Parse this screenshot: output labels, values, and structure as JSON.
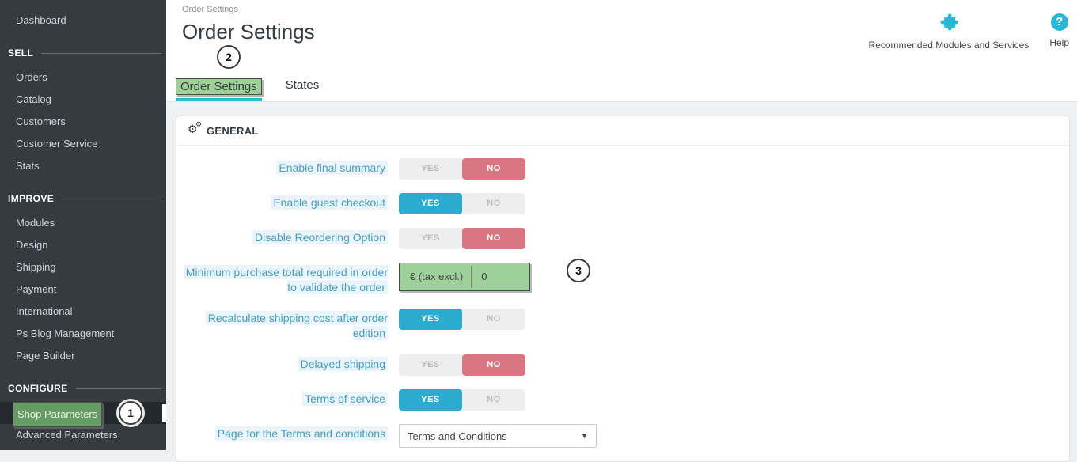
{
  "colors": {
    "accent": "#25b9d7",
    "sidebar-bg": "#363a41",
    "sidebar-selected-bg": "#24292e",
    "toggle-yes-active": "#2bacce",
    "toggle-no-active": "#d8777f",
    "annotation-green": "rgba(125,193,119,0.75)",
    "label-blue": "#459fc4",
    "label-bg": "#eaf4fa"
  },
  "sidebar": {
    "dashboard": "Dashboard",
    "selected_item": "Shop Parameters",
    "sections": [
      {
        "header": "SELL",
        "items": [
          "Orders",
          "Catalog",
          "Customers",
          "Customer Service",
          "Stats"
        ]
      },
      {
        "header": "IMPROVE",
        "items": [
          "Modules",
          "Design",
          "Shipping",
          "Payment",
          "International",
          "Ps Blog Management",
          "Page Builder"
        ]
      },
      {
        "header": "CONFIGURE",
        "items": [
          "Shop Parameters",
          "Advanced Parameters"
        ]
      }
    ]
  },
  "header": {
    "breadcrumb": "Order Settings",
    "title": "Order Settings",
    "tabs": [
      {
        "label": "Order Settings",
        "active": true,
        "annotated": true
      },
      {
        "label": "States",
        "active": false,
        "annotated": false
      }
    ],
    "tools": {
      "recommended": "Recommended Modules and Services",
      "help": "Help"
    }
  },
  "annotations": {
    "circle1": "1",
    "circle2": "2",
    "circle3": "3"
  },
  "panel": {
    "section_title": "GENERAL",
    "toggle_labels": {
      "yes": "YES",
      "no": "NO"
    },
    "rows": [
      {
        "label": "Enable final summary",
        "type": "toggle",
        "value": "NO"
      },
      {
        "label": "Enable guest checkout",
        "type": "toggle",
        "value": "YES"
      },
      {
        "label": "Disable Reordering Option",
        "type": "toggle",
        "value": "NO"
      },
      {
        "label": "Minimum purchase total required in order to validate the order",
        "type": "input",
        "prefix": "€ (tax excl.)",
        "value": "0",
        "annotated": true
      },
      {
        "label": "Recalculate shipping cost after order edition",
        "type": "toggle",
        "value": "YES"
      },
      {
        "label": "Delayed shipping",
        "type": "toggle",
        "value": "NO"
      },
      {
        "label": "Terms of service",
        "type": "toggle",
        "value": "YES"
      },
      {
        "label": "Page for the Terms and conditions",
        "type": "select",
        "value": "Terms and Conditions"
      }
    ]
  }
}
